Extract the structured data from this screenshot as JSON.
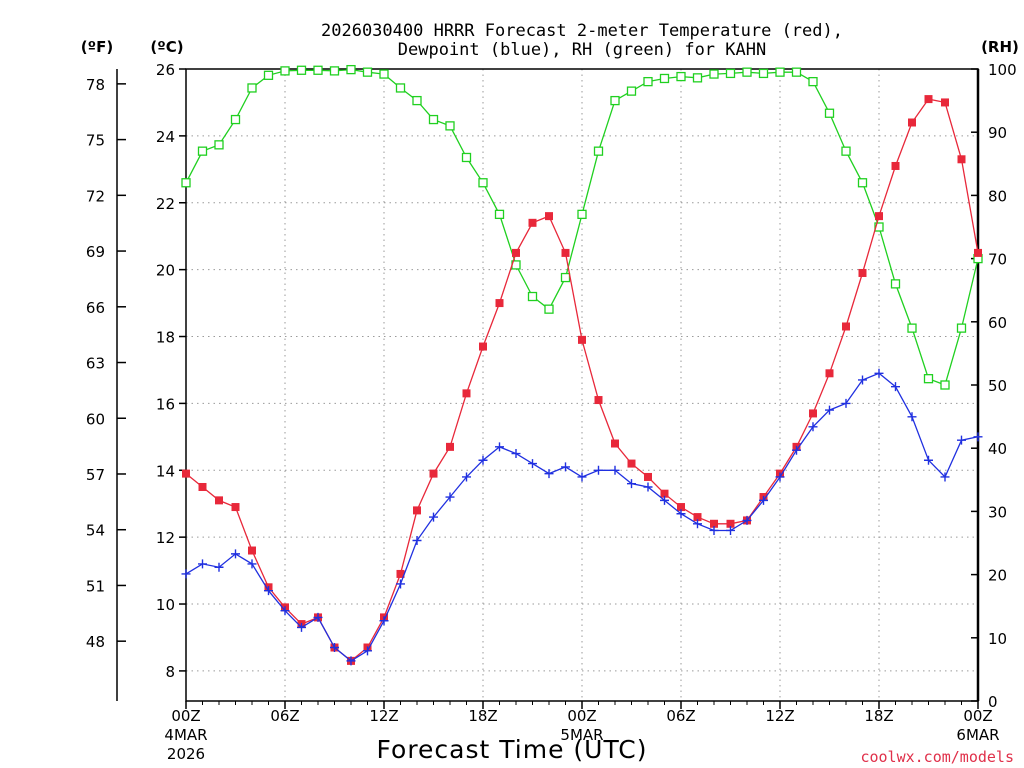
{
  "chart_data": {
    "type": "line",
    "title": [
      "2026030400 HRRR Forecast 2-meter Temperature (red),",
      "Dewpoint (blue), RH (green) for KAHN"
    ],
    "xlabel": "Forecast Time (UTC)",
    "credit": "coolwx.com/models",
    "units": {
      "fahrenheit": "(ºF)",
      "celsius": "(ºC)",
      "rh": "(RH)"
    },
    "x_forecast_hours": [
      0,
      1,
      2,
      3,
      4,
      5,
      6,
      7,
      8,
      9,
      10,
      11,
      12,
      13,
      14,
      15,
      16,
      17,
      18,
      19,
      20,
      21,
      22,
      23,
      24,
      25,
      26,
      27,
      28,
      29,
      30,
      31,
      32,
      33,
      34,
      35,
      36,
      37,
      38,
      39,
      40,
      41,
      42,
      43,
      44,
      45,
      46,
      47,
      48
    ],
    "xlim": [
      0,
      48
    ],
    "x_ticks": [
      {
        "hour": 0,
        "label": "00Z",
        "date": "4MAR",
        "year": "2026"
      },
      {
        "hour": 6,
        "label": "06Z",
        "date": "",
        "year": ""
      },
      {
        "hour": 12,
        "label": "12Z",
        "date": "",
        "year": ""
      },
      {
        "hour": 18,
        "label": "18Z",
        "date": "",
        "year": ""
      },
      {
        "hour": 24,
        "label": "00Z",
        "date": "5MAR",
        "year": ""
      },
      {
        "hour": 30,
        "label": "06Z",
        "date": "",
        "year": ""
      },
      {
        "hour": 36,
        "label": "12Z",
        "date": "",
        "year": ""
      },
      {
        "hour": 42,
        "label": "18Z",
        "date": "",
        "year": ""
      },
      {
        "hour": 48,
        "label": "00Z",
        "date": "6MAR",
        "year": ""
      }
    ],
    "ylim_celsius": [
      7.1,
      26
    ],
    "y_ticks_celsius": [
      8,
      10,
      12,
      14,
      16,
      18,
      20,
      22,
      24,
      26
    ],
    "y_ticks_fahrenheit": [
      48,
      51,
      54,
      57,
      60,
      63,
      66,
      69,
      72,
      75,
      78
    ],
    "ylim_rh": [
      0,
      100
    ],
    "y_ticks_rh": [
      0,
      10,
      20,
      30,
      40,
      50,
      60,
      70,
      80,
      90,
      100
    ],
    "series": [
      {
        "name": "2-meter Temperature",
        "units": "C",
        "axis": "celsius",
        "color": "#e8283a",
        "marker": "filled-square",
        "values": [
          13.9,
          13.5,
          13.1,
          12.9,
          11.6,
          10.5,
          9.9,
          9.4,
          9.6,
          8.7,
          8.3,
          8.7,
          9.6,
          10.9,
          12.8,
          13.9,
          14.7,
          16.3,
          17.7,
          19.0,
          20.5,
          21.4,
          21.6,
          20.5,
          17.9,
          16.1,
          14.8,
          14.2,
          13.8,
          13.3,
          12.9,
          12.6,
          12.4,
          12.4,
          12.5,
          13.2,
          13.9,
          14.7,
          15.7,
          16.9,
          18.3,
          19.9,
          21.6,
          23.1,
          24.4,
          25.1,
          25.0,
          23.3,
          20.5
        ]
      },
      {
        "name": "Dewpoint",
        "units": "C",
        "axis": "celsius",
        "color": "#2030e0",
        "marker": "plus",
        "values": [
          10.9,
          11.2,
          11.1,
          11.5,
          11.2,
          10.4,
          9.8,
          9.3,
          9.6,
          8.7,
          8.3,
          8.6,
          9.5,
          10.6,
          11.9,
          12.6,
          13.2,
          13.8,
          14.3,
          14.7,
          14.5,
          14.2,
          13.9,
          14.1,
          13.8,
          14.0,
          14.0,
          13.6,
          13.5,
          13.1,
          12.7,
          12.4,
          12.2,
          12.2,
          12.5,
          13.1,
          13.8,
          14.6,
          15.3,
          15.8,
          16.0,
          16.7,
          16.9,
          16.5,
          15.6,
          14.3,
          13.8,
          14.9,
          15.0
        ]
      },
      {
        "name": "RH",
        "units": "%",
        "axis": "rh",
        "color": "#20d020",
        "marker": "open-square",
        "values": [
          82,
          87,
          88,
          92,
          97,
          99,
          99.7,
          99.8,
          99.8,
          99.7,
          99.9,
          99.5,
          99.2,
          97,
          95,
          92,
          91,
          86,
          82,
          77,
          69,
          64,
          62,
          67,
          77,
          87,
          95,
          96.5,
          98,
          98.5,
          98.8,
          98.6,
          99.2,
          99.3,
          99.5,
          99.3,
          99.5,
          99.5,
          98,
          93,
          87,
          82,
          75,
          66,
          59,
          51,
          50,
          59,
          70
        ]
      }
    ]
  }
}
